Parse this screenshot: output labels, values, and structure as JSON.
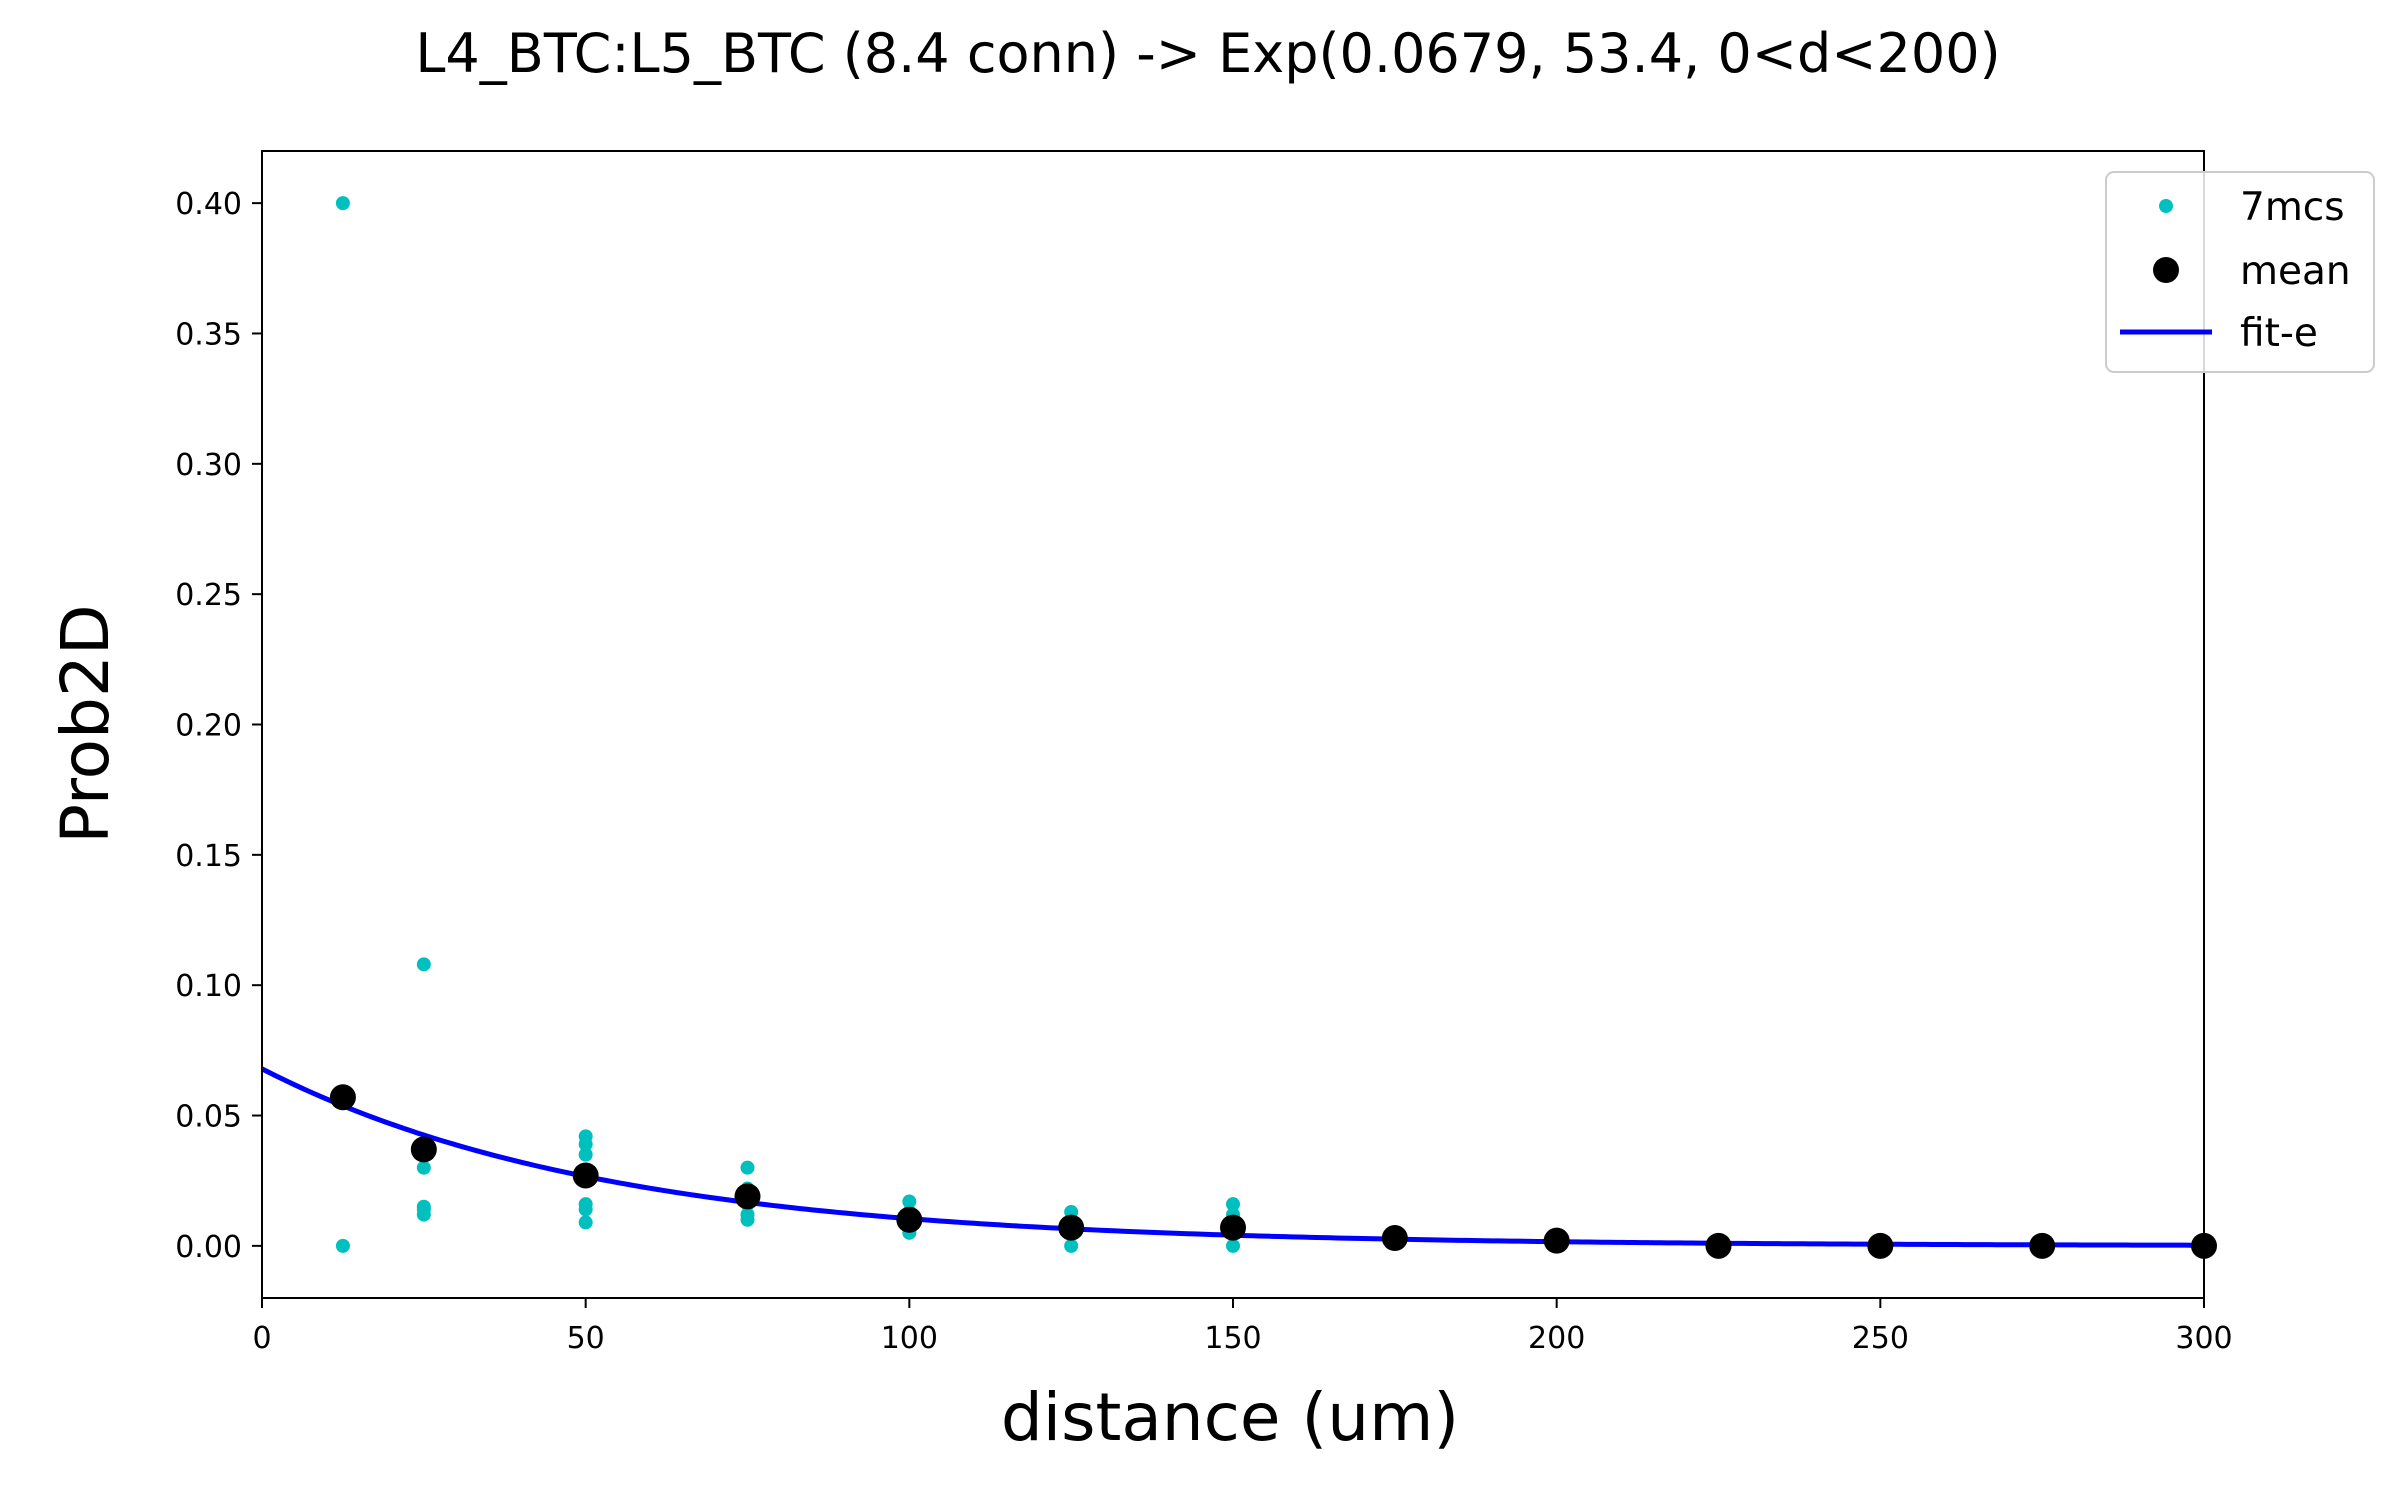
{
  "chart_data": {
    "type": "scatter",
    "title": "L4_BTC:L5_BTC (8.4 conn) -> Exp(0.0679, 53.4, 0<d<200)",
    "xlabel": "distance (um)",
    "ylabel": "Prob2D",
    "xlim": [
      0,
      300
    ],
    "ylim": [
      -0.02,
      0.42
    ],
    "x_ticks": [
      0,
      50,
      100,
      150,
      200,
      250,
      300
    ],
    "x_tick_labels": [
      "0",
      "50",
      "100",
      "150",
      "200",
      "250",
      "300"
    ],
    "y_ticks": [
      0.0,
      0.05,
      0.1,
      0.15,
      0.2,
      0.25,
      0.3,
      0.35,
      0.4
    ],
    "y_tick_labels": [
      "0.00",
      "0.05",
      "0.10",
      "0.15",
      "0.20",
      "0.25",
      "0.30",
      "0.35",
      "0.40"
    ],
    "grid": false,
    "legend_position": "top-right",
    "series": [
      {
        "name": "7mcs",
        "kind": "points",
        "color": "#00bfbf",
        "x": [
          12.5,
          12.5,
          25,
          25,
          25,
          25,
          25,
          50,
          50,
          50,
          50,
          50,
          50,
          75,
          75,
          75,
          75,
          75,
          100,
          100,
          100,
          100,
          100,
          125,
          125,
          125,
          125,
          150,
          150,
          150,
          150,
          175,
          200,
          225,
          250,
          275,
          300
        ],
        "y": [
          0.4,
          0.0,
          0.108,
          0.03,
          0.015,
          0.014,
          0.012,
          0.042,
          0.039,
          0.035,
          0.016,
          0.014,
          0.009,
          0.03,
          0.022,
          0.016,
          0.012,
          0.01,
          0.017,
          0.013,
          0.01,
          0.008,
          0.005,
          0.013,
          0.009,
          0.005,
          0.0,
          0.016,
          0.012,
          0.006,
          0.0,
          0.003,
          0.002,
          0.0,
          0.0,
          0.0,
          0.0
        ]
      },
      {
        "name": "mean",
        "kind": "points",
        "color": "#000000",
        "x": [
          12.5,
          25,
          50,
          75,
          100,
          125,
          150,
          175,
          200,
          225,
          250,
          275,
          300
        ],
        "y": [
          0.057,
          0.037,
          0.027,
          0.019,
          0.01,
          0.007,
          0.007,
          0.003,
          0.002,
          0.0,
          0.0,
          0.0,
          0.0
        ]
      },
      {
        "name": "fit-e",
        "kind": "line",
        "color": "#0000ff",
        "function": "exp",
        "a": 0.0679,
        "lambda": 53.4,
        "x_range": [
          0,
          300
        ]
      }
    ]
  }
}
